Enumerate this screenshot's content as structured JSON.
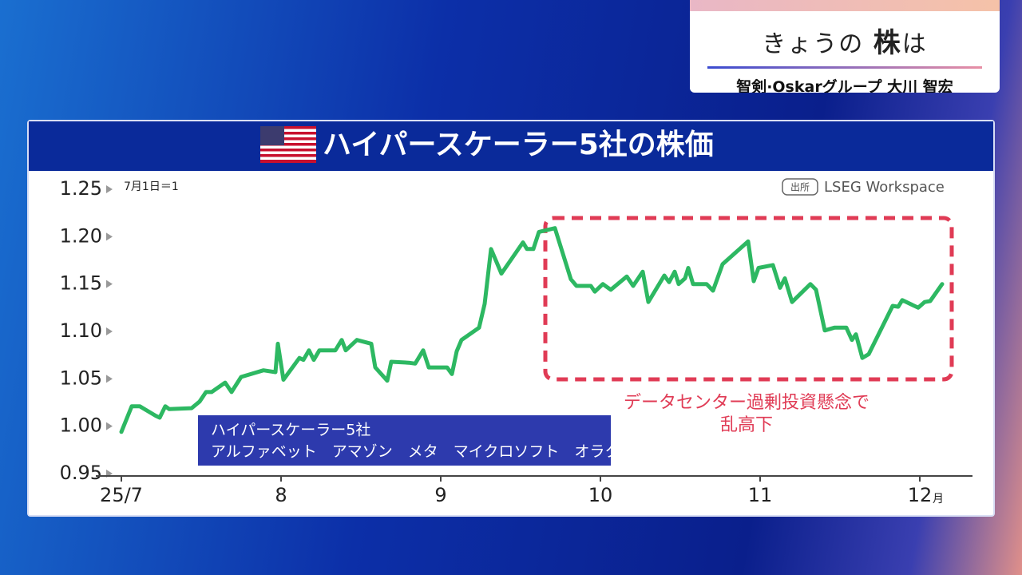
{
  "header": {
    "title_prefix": "きょうの",
    "title_main": "株",
    "title_suffix": "は",
    "subtitle": "智剣·Oskarグループ 大川 智宏"
  },
  "chart_data": {
    "type": "line",
    "title": "ハイパースケーラー5社の株価",
    "note": "7月1日＝1",
    "source_tag": "出所",
    "source": "LSEG Workspace",
    "legend_title": "ハイパースケーラー5社",
    "legend_members": "アルファベット　アマゾン　メタ　マイクロソフト　オラクル",
    "annotation": [
      "データセンター過剰投資懸念で",
      "乱高下"
    ],
    "x": [
      7.0,
      7.065,
      7.115,
      7.215,
      7.24,
      7.275,
      7.3,
      7.44,
      7.49,
      7.53,
      7.565,
      7.65,
      7.69,
      7.75,
      7.89,
      7.965,
      7.98,
      8.015,
      8.115,
      8.14,
      8.175,
      8.205,
      8.24,
      8.34,
      8.38,
      8.405,
      8.475,
      8.565,
      8.59,
      8.665,
      8.69,
      8.8,
      8.84,
      8.89,
      8.925,
      9.04,
      9.07,
      9.1,
      9.13,
      9.24,
      9.275,
      9.315,
      9.38,
      9.515,
      9.54,
      9.58,
      9.615,
      9.715,
      9.765,
      9.815,
      9.85,
      9.94,
      9.965,
      10.015,
      10.065,
      10.165,
      10.205,
      10.265,
      10.3,
      10.4,
      10.43,
      10.465,
      10.49,
      10.53,
      10.55,
      10.58,
      10.665,
      10.705,
      10.765,
      10.925,
      10.96,
      10.99,
      11.08,
      11.125,
      11.155,
      11.2,
      11.315,
      11.35,
      11.405,
      11.465,
      11.54,
      11.575,
      11.6,
      11.64,
      11.68,
      11.83,
      11.865,
      11.89,
      11.99,
      12.03,
      12.065,
      12.14
    ],
    "series": [
      {
        "color": "#2db862",
        "values": [
          0.994,
          1.021,
          1.021,
          1.011,
          1.009,
          1.021,
          1.018,
          1.019,
          1.026,
          1.036,
          1.036,
          1.046,
          1.036,
          1.052,
          1.059,
          1.057,
          1.087,
          1.049,
          1.072,
          1.07,
          1.08,
          1.07,
          1.08,
          1.08,
          1.091,
          1.08,
          1.091,
          1.087,
          1.062,
          1.048,
          1.068,
          1.067,
          1.066,
          1.08,
          1.062,
          1.062,
          1.055,
          1.079,
          1.091,
          1.104,
          1.129,
          1.187,
          1.161,
          1.194,
          1.187,
          1.187,
          1.205,
          1.209,
          1.182,
          1.155,
          1.148,
          1.148,
          1.142,
          1.15,
          1.144,
          1.158,
          1.148,
          1.163,
          1.131,
          1.159,
          1.152,
          1.163,
          1.15,
          1.156,
          1.167,
          1.15,
          1.15,
          1.143,
          1.171,
          1.195,
          1.153,
          1.167,
          1.17,
          1.146,
          1.156,
          1.131,
          1.15,
          1.144,
          1.101,
          1.104,
          1.104,
          1.091,
          1.097,
          1.072,
          1.076,
          1.127,
          1.126,
          1.133,
          1.125,
          1.131,
          1.132,
          1.15
        ]
      }
    ],
    "xlim": [
      6.84,
      12.33
    ],
    "xticks": [
      {
        "value": 7,
        "label": "25/7"
      },
      8,
      9,
      10,
      11,
      {
        "value": 12,
        "label": "12"
      }
    ],
    "x_unit": "月",
    "ylim": [
      0.95,
      1.25
    ],
    "yticks": [
      0.95,
      {
        "value": 1.0,
        "label": "1.00"
      },
      {
        "value": 1.05,
        "label": "1.05"
      },
      {
        "value": 1.1,
        "label": "1.10"
      },
      {
        "value": 1.15,
        "label": "1.15"
      },
      {
        "value": 1.2,
        "label": "1.20"
      },
      1.25
    ]
  }
}
